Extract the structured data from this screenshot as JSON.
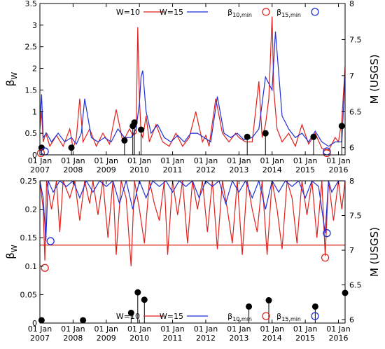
{
  "chart_data": [
    {
      "type": "line",
      "panel": "top",
      "ylabel": "β",
      "ylabel_sub": "W",
      "y2label": "M (USGS)",
      "ylim": [
        0,
        3.5
      ],
      "y2lim": [
        5.9,
        8.0
      ],
      "yticks": [
        "0",
        "0.5",
        "1",
        "1.5",
        "2",
        "2.5",
        "3",
        "3.5"
      ],
      "y2ticks": [
        "6",
        "6.5",
        "7",
        "7.5",
        "8"
      ],
      "xlim": [
        2007.0,
        2016.2
      ],
      "xticks": [
        {
          "top": "01 Jan",
          "bottom": "2007"
        },
        {
          "top": "01 Jan",
          "bottom": "2008"
        },
        {
          "top": "01 Jan",
          "bottom": "2009"
        },
        {
          "top": "01 Jan",
          "bottom": "2010"
        },
        {
          "top": "01 Jan",
          "bottom": "2011"
        },
        {
          "top": "01 Jan",
          "bottom": "2012"
        },
        {
          "top": "01 Jan",
          "bottom": "2013"
        },
        {
          "top": "01 Jan",
          "bottom": "2014"
        },
        {
          "top": "01 Jan",
          "bottom": "2015"
        },
        {
          "top": "01 Jan",
          "bottom": "2016"
        }
      ],
      "legend": {
        "placement": "top",
        "entries": [
          {
            "label": "W=10",
            "color": "#e0201b",
            "kind": "line"
          },
          {
            "label": "W=15",
            "color": "#1f2fd6",
            "kind": "line"
          },
          {
            "label": "β",
            "sub": "10,min",
            "color": "#e0201b",
            "kind": "circle"
          },
          {
            "label": "β",
            "sub": "15,min",
            "color": "#1f2fd6",
            "kind": "circle"
          }
        ]
      },
      "series": [
        {
          "color": "#e0201b",
          "x": [
            2007.0,
            2007.05,
            2007.1,
            2007.18,
            2007.3,
            2007.5,
            2007.7,
            2007.9,
            2008.0,
            2008.1,
            2008.2,
            2008.3,
            2008.5,
            2008.7,
            2008.9,
            2009.1,
            2009.3,
            2009.5,
            2009.7,
            2009.8,
            2009.9,
            2009.95,
            2010.0,
            2010.05,
            2010.1,
            2010.2,
            2010.3,
            2010.5,
            2010.7,
            2010.9,
            2011.1,
            2011.3,
            2011.5,
            2011.7,
            2011.9,
            2012.0,
            2012.1,
            2012.3,
            2012.5,
            2012.7,
            2012.9,
            2013.0,
            2013.2,
            2013.4,
            2013.6,
            2013.7,
            2013.8,
            2013.9,
            2014.0,
            2014.05,
            2014.15,
            2014.3,
            2014.5,
            2014.7,
            2014.9,
            2015.1,
            2015.3,
            2015.5,
            2015.7,
            2015.9,
            2016.0,
            2016.1,
            2016.2
          ],
          "y": [
            0.6,
            1.0,
            0.3,
            0.5,
            0.2,
            0.45,
            0.2,
            0.6,
            0.15,
            0.4,
            1.3,
            0.3,
            0.6,
            0.2,
            0.5,
            0.25,
            1.05,
            0.3,
            0.6,
            0.45,
            0.5,
            2.95,
            1.3,
            0.5,
            0.4,
            0.9,
            0.3,
            0.7,
            0.3,
            0.2,
            0.5,
            0.2,
            0.4,
            1.0,
            0.3,
            0.45,
            0.2,
            1.3,
            0.5,
            0.3,
            0.5,
            0.4,
            0.3,
            0.3,
            1.7,
            0.4,
            0.7,
            1.3,
            3.2,
            1.5,
            0.6,
            0.3,
            0.5,
            0.2,
            0.7,
            0.25,
            0.5,
            0.15,
            0.1,
            0.4,
            0.3,
            0.8,
            2.05
          ]
        },
        {
          "color": "#1f2fd6",
          "x": [
            2007.0,
            2007.05,
            2007.1,
            2007.2,
            2007.35,
            2007.55,
            2007.75,
            2007.95,
            2008.1,
            2008.25,
            2008.35,
            2008.55,
            2008.75,
            2008.95,
            2009.15,
            2009.35,
            2009.55,
            2009.75,
            2009.9,
            2010.0,
            2010.05,
            2010.1,
            2010.2,
            2010.35,
            2010.55,
            2010.75,
            2010.95,
            2011.15,
            2011.35,
            2011.55,
            2011.75,
            2011.95,
            2012.15,
            2012.35,
            2012.55,
            2012.75,
            2012.95,
            2013.15,
            2013.4,
            2013.6,
            2013.8,
            2014.0,
            2014.1,
            2014.3,
            2014.5,
            2014.7,
            2014.9,
            2015.1,
            2015.3,
            2015.5,
            2015.7,
            2015.9,
            2016.1,
            2016.2
          ],
          "y": [
            0.8,
            1.4,
            0.4,
            0.5,
            0.3,
            0.5,
            0.3,
            0.4,
            0.25,
            0.5,
            1.3,
            0.4,
            0.3,
            0.4,
            0.3,
            0.6,
            0.4,
            0.4,
            0.6,
            1.2,
            1.8,
            1.95,
            1.0,
            0.5,
            0.7,
            0.4,
            0.3,
            0.45,
            0.3,
            0.5,
            0.5,
            0.4,
            0.3,
            1.35,
            0.5,
            0.4,
            0.5,
            0.35,
            0.4,
            0.6,
            1.8,
            1.5,
            2.85,
            0.9,
            0.6,
            0.4,
            0.5,
            0.3,
            0.55,
            0.3,
            0.2,
            0.3,
            0.3,
            1.85
          ]
        }
      ],
      "markers": [
        {
          "x": 2007.03,
          "y": 0.04,
          "color": "#e0201b",
          "series": "β10,min"
        },
        {
          "x": 2007.15,
          "y": 0.08,
          "color": "#1f2fd6",
          "series": "β15,min"
        },
        {
          "x": 2015.65,
          "y": 0.04,
          "color": "#e0201b",
          "series": "β10,min"
        },
        {
          "x": 2015.65,
          "y": 0.08,
          "color": "#1f2fd6",
          "series": "β15,min"
        }
      ],
      "earthquakes_M": [
        {
          "x": 2007.05,
          "m": 6.0
        },
        {
          "x": 2007.95,
          "m": 6.0
        },
        {
          "x": 2009.55,
          "m": 6.1
        },
        {
          "x": 2009.85,
          "m": 6.35
        },
        {
          "x": 2009.8,
          "m": 6.3
        },
        {
          "x": 2010.05,
          "m": 6.25
        },
        {
          "x": 2013.25,
          "m": 6.15
        },
        {
          "x": 2013.8,
          "m": 6.2
        },
        {
          "x": 2015.25,
          "m": 6.15
        },
        {
          "x": 2016.1,
          "m": 6.3
        }
      ]
    },
    {
      "type": "line",
      "panel": "bottom",
      "ylabel": "β",
      "ylabel_sub": "W",
      "y2label": "M (USGS)",
      "ylim": [
        0,
        0.25
      ],
      "y2lim": [
        5.95,
        8.0
      ],
      "yticks": [
        "0",
        "0.05",
        "0.1",
        "0.15",
        "0.2",
        "0.25"
      ],
      "y2ticks": [
        "6",
        "6.5",
        "7",
        "7.5",
        "8"
      ],
      "xlim": [
        2007.0,
        2016.2
      ],
      "xticks": [
        {
          "top": "01 Jan",
          "bottom": "2007"
        },
        {
          "top": "01 Jan",
          "bottom": "2008"
        },
        {
          "top": "01 Jan",
          "bottom": "2009"
        },
        {
          "top": "01 Jan",
          "bottom": "2010"
        },
        {
          "top": "01 Jan",
          "bottom": "2011"
        },
        {
          "top": "01 Jan",
          "bottom": "2012"
        },
        {
          "top": "01 Jan",
          "bottom": "2013"
        },
        {
          "top": "01 Jan",
          "bottom": "2014"
        },
        {
          "top": "01 Jan",
          "bottom": "2015"
        },
        {
          "top": "01 Jan",
          "bottom": "2016"
        }
      ],
      "hline": {
        "y": 0.137,
        "color": "#e0201b"
      },
      "legend": {
        "placement": "bottom",
        "entries": [
          {
            "label": "W=10",
            "color": "#e0201b",
            "kind": "line"
          },
          {
            "label": "W=15",
            "color": "#1f2fd6",
            "kind": "line"
          },
          {
            "label": "β",
            "sub": "10,min",
            "color": "#e0201b",
            "kind": "circle"
          },
          {
            "label": "β",
            "sub": "15,min",
            "color": "#1f2fd6",
            "kind": "circle"
          }
        ]
      },
      "series": [
        {
          "color": "#e0201b",
          "x": [
            2007.0,
            2007.1,
            2007.15,
            2007.2,
            2007.35,
            2007.5,
            2007.6,
            2007.7,
            2007.9,
            2008.05,
            2008.2,
            2008.35,
            2008.5,
            2008.6,
            2008.75,
            2008.9,
            2009.05,
            2009.2,
            2009.3,
            2009.45,
            2009.6,
            2009.75,
            2009.85,
            2010.0,
            2010.15,
            2010.3,
            2010.45,
            2010.6,
            2010.75,
            2010.85,
            2011.0,
            2011.15,
            2011.3,
            2011.45,
            2011.6,
            2011.75,
            2011.9,
            2012.05,
            2012.2,
            2012.35,
            2012.5,
            2012.65,
            2012.8,
            2012.95,
            2013.1,
            2013.25,
            2013.4,
            2013.55,
            2013.7,
            2013.85,
            2014.0,
            2014.15,
            2014.3,
            2014.45,
            2014.6,
            2014.75,
            2014.9,
            2015.05,
            2015.2,
            2015.35,
            2015.5,
            2015.6,
            2015.7,
            2015.85,
            2016.0,
            2016.1,
            2016.2
          ],
          "y": [
            0.25,
            0.2,
            0.11,
            0.25,
            0.2,
            0.25,
            0.16,
            0.25,
            0.22,
            0.25,
            0.18,
            0.25,
            0.21,
            0.25,
            0.19,
            0.25,
            0.15,
            0.25,
            0.12,
            0.25,
            0.22,
            0.1,
            0.25,
            0.2,
            0.14,
            0.25,
            0.21,
            0.18,
            0.25,
            0.12,
            0.25,
            0.19,
            0.25,
            0.14,
            0.25,
            0.2,
            0.25,
            0.16,
            0.25,
            0.13,
            0.25,
            0.2,
            0.14,
            0.25,
            0.12,
            0.25,
            0.2,
            0.16,
            0.25,
            0.12,
            0.25,
            0.2,
            0.13,
            0.25,
            0.22,
            0.14,
            0.25,
            0.19,
            0.25,
            0.15,
            0.25,
            0.118,
            0.25,
            0.18,
            0.25,
            0.2,
            0.25
          ]
        },
        {
          "color": "#1f2fd6",
          "x": [
            2007.0,
            2007.1,
            2007.18,
            2007.25,
            2007.4,
            2007.6,
            2007.8,
            2008.0,
            2008.2,
            2008.4,
            2008.6,
            2008.8,
            2009.0,
            2009.2,
            2009.4,
            2009.6,
            2009.8,
            2010.0,
            2010.2,
            2010.4,
            2010.6,
            2010.8,
            2011.0,
            2011.2,
            2011.4,
            2011.6,
            2011.8,
            2012.0,
            2012.2,
            2012.4,
            2012.6,
            2012.8,
            2013.0,
            2013.2,
            2013.4,
            2013.6,
            2013.8,
            2014.0,
            2014.2,
            2014.4,
            2014.6,
            2014.8,
            2015.0,
            2015.2,
            2015.4,
            2015.6,
            2015.7,
            2015.8,
            2016.0,
            2016.2
          ],
          "y": [
            0.25,
            0.22,
            0.145,
            0.25,
            0.23,
            0.25,
            0.24,
            0.25,
            0.22,
            0.25,
            0.23,
            0.25,
            0.24,
            0.25,
            0.21,
            0.25,
            0.2,
            0.25,
            0.22,
            0.25,
            0.24,
            0.25,
            0.23,
            0.25,
            0.24,
            0.25,
            0.22,
            0.25,
            0.24,
            0.25,
            0.21,
            0.25,
            0.23,
            0.25,
            0.22,
            0.25,
            0.2,
            0.25,
            0.23,
            0.25,
            0.24,
            0.25,
            0.22,
            0.25,
            0.24,
            0.158,
            0.25,
            0.23,
            0.25,
            0.25
          ]
        }
      ],
      "markers": [
        {
          "x": 2007.15,
          "y": 0.097,
          "color": "#e0201b",
          "series": "β10,min"
        },
        {
          "x": 2007.32,
          "y": 0.144,
          "color": "#1f2fd6",
          "series": "β15,min"
        },
        {
          "x": 2015.6,
          "y": 0.115,
          "color": "#e0201b",
          "series": "β10,min"
        },
        {
          "x": 2015.65,
          "y": 0.158,
          "color": "#1f2fd6",
          "series": "β15,min"
        }
      ],
      "earthquakes": [
        {
          "x": 2007.05,
          "y": 0.005
        },
        {
          "x": 2008.3,
          "y": 0.005
        },
        {
          "x": 2009.75,
          "y": 0.018
        },
        {
          "x": 2009.95,
          "y": 0.054
        },
        {
          "x": 2010.15,
          "y": 0.041
        },
        {
          "x": 2013.3,
          "y": 0.029
        },
        {
          "x": 2013.9,
          "y": 0.04
        },
        {
          "x": 2015.3,
          "y": 0.029
        },
        {
          "x": 2016.2,
          "y": 0.053
        }
      ]
    }
  ]
}
